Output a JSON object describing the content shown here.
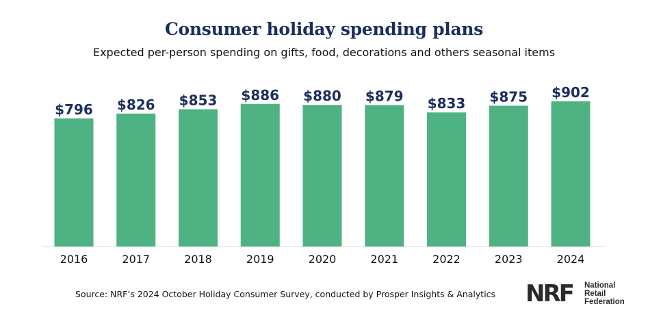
{
  "header": {
    "title": "Consumer holiday spending plans",
    "subtitle": "Expected per-person spending on gifts, food, decorations and others seasonal items"
  },
  "footer": {
    "source": "Source: NRF’s 2024 October Holiday Consumer Survey, conducted by Prosper Insights & Analytics",
    "logo": {
      "mark": "NRF",
      "line1": "National",
      "line2": "Retail",
      "line3": "Federation"
    }
  },
  "colors": {
    "bar": "#4fb283",
    "value_label": "#1b2f5e",
    "title": "#1b2f5e"
  },
  "chart_data": {
    "type": "bar",
    "title": "Consumer holiday spending plans",
    "subtitle": "Expected per-person spending on gifts, food, decorations and others seasonal items",
    "categories": [
      "2016",
      "2017",
      "2018",
      "2019",
      "2020",
      "2021",
      "2022",
      "2023",
      "2024"
    ],
    "values": [
      796,
      826,
      853,
      886,
      880,
      879,
      833,
      875,
      902
    ],
    "value_labels": [
      "$796",
      "$826",
      "$853",
      "$886",
      "$880",
      "$879",
      "$833",
      "$875",
      "$902"
    ],
    "xlabel": "",
    "ylabel": "",
    "ylim": [
      0,
      902
    ],
    "grid": false,
    "legend": "none"
  }
}
